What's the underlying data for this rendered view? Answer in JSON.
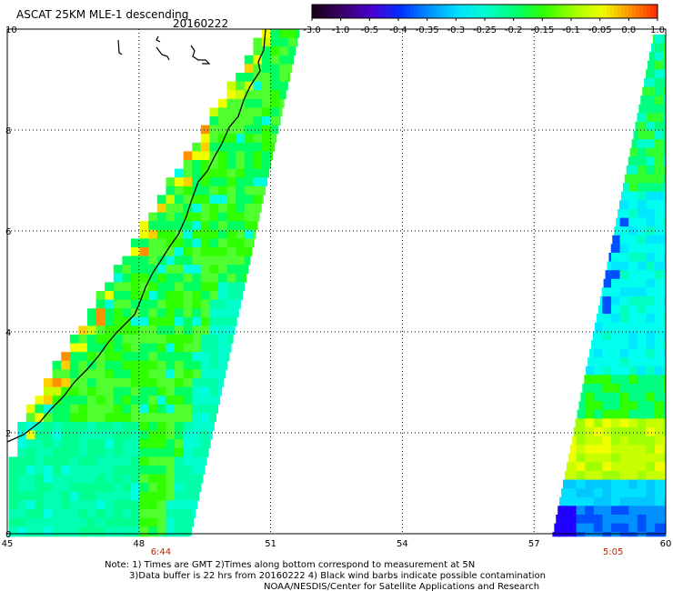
{
  "header": {
    "title": "ASCAT 25KM MLE-1 descending",
    "date": "20160222"
  },
  "colorbar": {
    "labels": [
      "-3.0",
      "-1.0",
      "-0.5",
      "-0.4",
      "-0.35",
      "-0.3",
      "-0.25",
      "-0.2",
      "-0.15",
      "-0.1",
      "-0.05",
      "0.0",
      "1.0"
    ],
    "colors": [
      "#1a001a",
      "#3a006a",
      "#4a00d0",
      "#0030ff",
      "#0090ff",
      "#00e0ff",
      "#00ffcc",
      "#00ff70",
      "#30ff00",
      "#a0ff00",
      "#f0ff00",
      "#ff9000",
      "#ff2000"
    ]
  },
  "map": {
    "lon_ticks": [
      "45",
      "48",
      "51",
      "54",
      "57",
      "60"
    ],
    "lat_ticks": [
      "0",
      "2",
      "4",
      "6",
      "8",
      "10"
    ],
    "lon_range": [
      45,
      60
    ],
    "lat_range": [
      0,
      10
    ],
    "grid": true,
    "gridline_style": "dotted"
  },
  "swaths": [
    {
      "name": "west-swath",
      "time": "6:44",
      "time_lon": 48.5
    },
    {
      "name": "east-swath",
      "time": "5:05",
      "time_lon": 58.8
    }
  ],
  "footer": {
    "line1": "Note: 1) Times are GMT 2)Times along bottom correspond to measurement at 5N",
    "line2": "3)Data buffer is 22 hrs from 20160222 4) Black wind barbs indicate possible contamination",
    "line3": "NOAA/NESDIS/Center for Satellite Applications and Research"
  },
  "colors": {
    "time_label": "#cc2200",
    "coastline": "#000000",
    "grid": "#000000"
  }
}
